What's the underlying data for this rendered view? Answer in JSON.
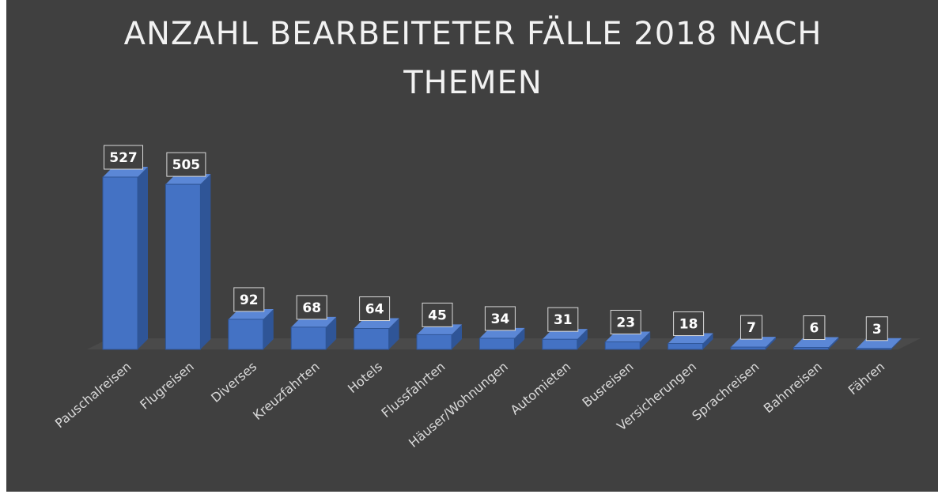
{
  "chart_data": {
    "type": "bar3d",
    "title": "ANZAHL BEARBEITETER FÄLLE 2018 NACH THEMEN",
    "categories": [
      "Pauschalreisen",
      "Flugreisen",
      "Diverses",
      "Kreuzfahrten",
      "Hotels",
      "Flussfahrten",
      "Häuser/Wohnungen",
      "Automieten",
      "Busreisen",
      "Versicherungen",
      "Sprachreisen",
      "Bahnreisen",
      "Fähren"
    ],
    "values": [
      527,
      505,
      92,
      68,
      64,
      45,
      34,
      31,
      23,
      18,
      7,
      6,
      3
    ],
    "color": "#4472c4"
  }
}
